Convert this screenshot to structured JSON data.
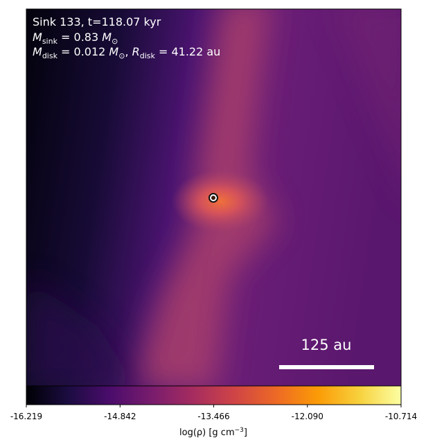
{
  "chart_data": {
    "type": "density-map",
    "annotations": [
      "Sink 133, t=118.07 kyr",
      [
        "M",
        "sink",
        " = 0.83 ",
        "M",
        "⊙"
      ],
      [
        "M",
        "disk",
        " = 0.012 ",
        "M",
        "⊙",
        ", ",
        "R",
        "disk",
        " = 41.22 au"
      ]
    ],
    "scale_bar_label": "125 au",
    "colormap": "inferno",
    "clim": [
      -16.219,
      -10.714
    ],
    "cticks": [
      -16.219,
      -14.842,
      -13.466,
      {
        "value": -12.09,
        "label": "-12.090"
      },
      -10.714
    ],
    "colorbar_label": [
      "log(ρ) [g cm",
      "−3",
      "]"
    ]
  }
}
